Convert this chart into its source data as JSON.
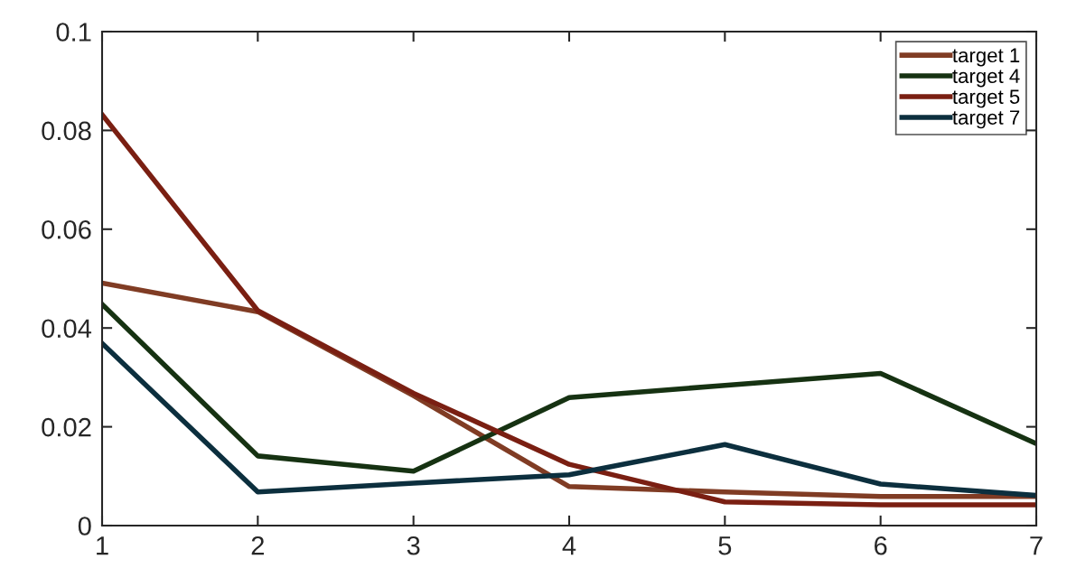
{
  "chart_data": {
    "type": "line",
    "x": [
      1,
      2,
      3,
      4,
      5,
      6,
      7
    ],
    "series": [
      {
        "name": "target 1",
        "color": "#803c24",
        "values": [
          0.0491,
          0.0433,
          0.0263,
          0.0079,
          0.0068,
          0.0059,
          0.0059
        ]
      },
      {
        "name": "target 4",
        "color": "#163212",
        "values": [
          0.0448,
          0.0141,
          0.011,
          0.0259,
          0.0284,
          0.0308,
          0.0166
        ]
      },
      {
        "name": "target 5",
        "color": "#7a1f12",
        "values": [
          0.0832,
          0.0435,
          0.0268,
          0.0124,
          0.0048,
          0.0042,
          0.0042
        ]
      },
      {
        "name": "target 7",
        "color": "#0c2f3e",
        "values": [
          0.0369,
          0.0068,
          0.0086,
          0.0103,
          0.0164,
          0.0084,
          0.0061
        ]
      }
    ],
    "xlim": [
      1,
      7
    ],
    "ylim": [
      0,
      0.1
    ],
    "xticks": [
      1,
      2,
      3,
      4,
      5,
      6,
      7
    ],
    "yticks": [
      0,
      0.02,
      0.04,
      0.06,
      0.08,
      0.1
    ],
    "legend": "top right",
    "grid": false,
    "marker": "none",
    "line_style": "solid"
  }
}
